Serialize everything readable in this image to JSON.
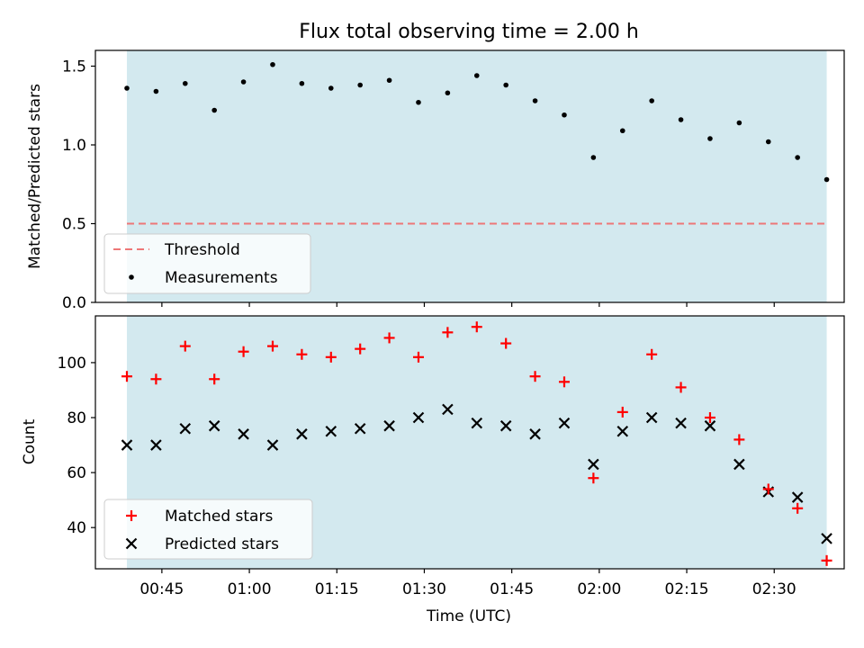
{
  "chart_data": [
    {
      "type": "scatter",
      "title": "Flux total observing time = 2.00 h",
      "ylabel": "Matched/Predicted stars",
      "xlabel": "",
      "ylim": [
        0,
        1.6
      ],
      "yticks": [
        "0.0",
        "0.5",
        "1.0",
        "1.5"
      ],
      "ytick_values": [
        0,
        0.5,
        1.0,
        1.5
      ],
      "threshold": 0.5,
      "legend_position": "lower-left",
      "legend": [
        "Threshold",
        "Measurements"
      ],
      "shaded_region": {
        "x_start": "00:39",
        "x_end": "02:39",
        "color": "#d3e9ef"
      },
      "threshold_color": "#ee7777",
      "marker_color": "#000000",
      "x": [
        "00:39",
        "00:44",
        "00:49",
        "00:54",
        "00:59",
        "01:04",
        "01:09",
        "01:14",
        "01:19",
        "01:24",
        "01:29",
        "01:34",
        "01:39",
        "01:44",
        "01:49",
        "01:54",
        "01:59",
        "02:04",
        "02:09",
        "02:14",
        "02:19",
        "02:24",
        "02:29",
        "02:34",
        "02:39"
      ],
      "series": [
        {
          "name": "Measurements",
          "values": [
            1.36,
            1.34,
            1.39,
            1.22,
            1.4,
            1.51,
            1.39,
            1.36,
            1.38,
            1.41,
            1.27,
            1.33,
            1.44,
            1.38,
            1.28,
            1.19,
            0.92,
            1.09,
            1.28,
            1.16,
            1.04,
            1.14,
            1.02,
            0.92,
            0.78
          ]
        }
      ]
    },
    {
      "type": "scatter",
      "title": "",
      "ylabel": "Count",
      "xlabel": "Time (UTC)",
      "ylim": [
        25,
        117
      ],
      "yticks": [
        "40",
        "60",
        "80",
        "100"
      ],
      "ytick_values": [
        40,
        60,
        80,
        100
      ],
      "xticks": [
        "00:45",
        "01:00",
        "01:15",
        "01:30",
        "01:45",
        "02:00",
        "02:15",
        "02:30"
      ],
      "legend_position": "lower-left",
      "legend": [
        "Matched stars",
        "Predicted stars"
      ],
      "x": [
        "00:39",
        "00:44",
        "00:49",
        "00:54",
        "00:59",
        "01:04",
        "01:09",
        "01:14",
        "01:19",
        "01:24",
        "01:29",
        "01:34",
        "01:39",
        "01:44",
        "01:49",
        "01:54",
        "01:59",
        "02:04",
        "02:09",
        "02:14",
        "02:19",
        "02:24",
        "02:29",
        "02:34",
        "02:39"
      ],
      "series": [
        {
          "name": "Matched stars",
          "marker": "plus",
          "color": "#ff0000",
          "values": [
            95,
            94,
            106,
            94,
            104,
            106,
            103,
            102,
            105,
            109,
            102,
            111,
            113,
            107,
            95,
            93,
            58,
            82,
            103,
            91,
            80,
            72,
            54,
            47,
            28
          ]
        },
        {
          "name": "Predicted stars",
          "marker": "x",
          "color": "#000000",
          "values": [
            70,
            70,
            76,
            77,
            74,
            70,
            74,
            75,
            76,
            77,
            80,
            83,
            78,
            77,
            74,
            78,
            63,
            75,
            80,
            78,
            77,
            63,
            53,
            51,
            36
          ]
        }
      ]
    }
  ]
}
